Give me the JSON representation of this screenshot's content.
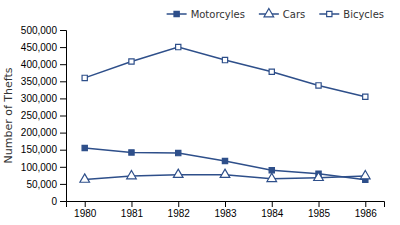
{
  "chart_data": {
    "type": "line",
    "x": [
      1980,
      1981,
      1982,
      1983,
      1984,
      1985,
      1986
    ],
    "series": [
      {
        "name": "Motorcyles",
        "color": "#2e4f8a",
        "marker": "square",
        "values": [
          155000,
          142000,
          140000,
          117000,
          90000,
          80000,
          62000
        ]
      },
      {
        "name": "Cars",
        "color": "#2e4f8a",
        "marker": "triangle-open",
        "values": [
          63000,
          73000,
          77000,
          77000,
          65000,
          68000,
          73000
        ]
      },
      {
        "name": "Bicycles",
        "color": "#2e4f8a",
        "marker": "square-open",
        "values": [
          360000,
          408000,
          450000,
          412000,
          378000,
          338000,
          305000
        ]
      }
    ],
    "ylabel": "Number of Thefts",
    "xlim": [
      1979.6,
      1986.4
    ],
    "xticks": [
      1980,
      1981,
      1982,
      1983,
      1984,
      1985,
      1986
    ],
    "ylim": [
      0,
      500000
    ],
    "yticks": [
      0,
      {
        "value": 50000,
        "label": "50,000"
      },
      {
        "value": 100000,
        "label": "100,000"
      },
      {
        "value": 150000,
        "label": "150,000"
      },
      {
        "value": 200000,
        "label": "200,000"
      },
      {
        "value": 250000,
        "label": "250,000"
      },
      {
        "value": 300000,
        "label": "300,000"
      },
      {
        "value": 350000,
        "label": "350,000"
      },
      {
        "value": 400000,
        "label": "400,000"
      },
      {
        "value": 450000,
        "label": "450,000"
      },
      {
        "value": 500000,
        "label": "500,000"
      }
    ],
    "grid": false,
    "legend": "top-right"
  }
}
